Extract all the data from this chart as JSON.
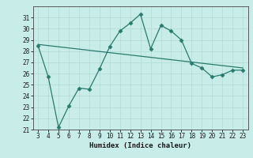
{
  "x_data": [
    3,
    4,
    5,
    6,
    7,
    8,
    9,
    10,
    11,
    12,
    13,
    14,
    15,
    16,
    17,
    18,
    19,
    20,
    21,
    22,
    23
  ],
  "y_data": [
    28.5,
    25.7,
    21.2,
    23.1,
    24.7,
    24.6,
    26.4,
    28.4,
    29.8,
    30.5,
    31.3,
    28.2,
    30.3,
    29.8,
    29.0,
    26.9,
    26.5,
    25.7,
    25.9,
    26.3,
    26.3
  ],
  "trend_x": [
    3,
    23
  ],
  "trend_y": [
    28.6,
    26.5
  ],
  "line_color": "#2a7a6e",
  "bg_color": "#c8ece8",
  "grid_color": "#b0dcd8",
  "xlabel": "Humidex (Indice chaleur)",
  "xlim": [
    2.5,
    23.5
  ],
  "ylim": [
    21,
    32
  ],
  "yticks": [
    21,
    22,
    23,
    24,
    25,
    26,
    27,
    28,
    29,
    30,
    31
  ],
  "xticks": [
    3,
    4,
    5,
    6,
    7,
    8,
    9,
    10,
    11,
    12,
    13,
    14,
    15,
    16,
    17,
    18,
    19,
    20,
    21,
    22,
    23
  ],
  "markersize": 2.5,
  "linewidth": 0.9,
  "tick_fontsize": 5.5,
  "xlabel_fontsize": 6.5
}
